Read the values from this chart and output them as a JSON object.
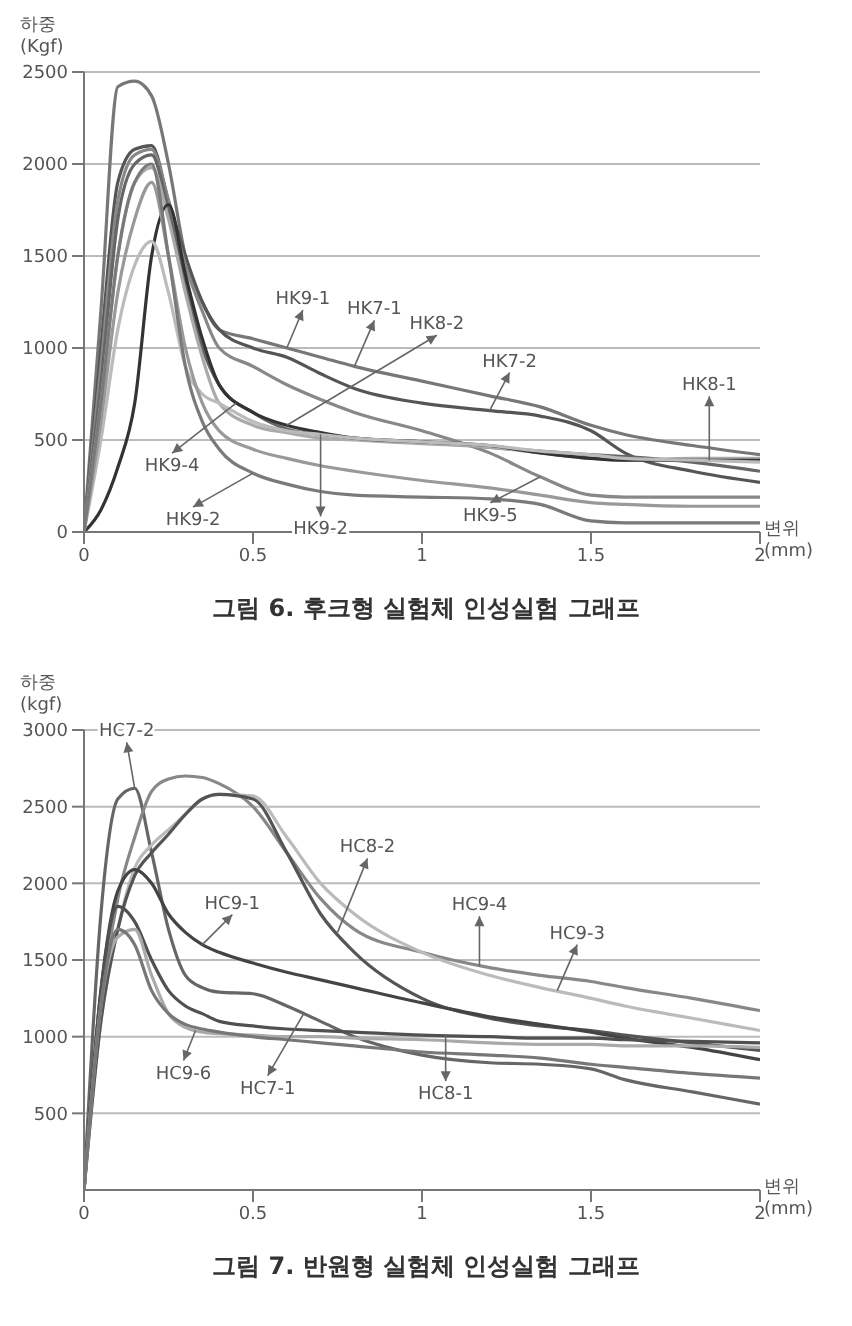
{
  "chart_data": [
    {
      "type": "line",
      "title": "그림 6. 후크형 실험체 인성실험 그래프",
      "ylabel": "하중 (Kgf)",
      "xlabel": "변위 (mm)",
      "x": [
        0,
        0.05,
        0.1,
        0.15,
        0.2,
        0.25,
        0.3,
        0.35,
        0.4,
        0.5,
        0.6,
        0.7,
        0.8,
        1.0,
        1.2,
        1.35,
        1.5,
        1.6,
        1.8,
        2.0
      ],
      "series": [
        {
          "color": "#777777",
          "values": [
            0,
            1200,
            2420,
            2450,
            2370,
            2000,
            1500,
            1250,
            1100,
            1050,
            1000,
            950,
            900,
            820,
            740,
            680,
            580,
            530,
            470,
            420
          ]
        },
        {
          "color": "#555555",
          "values": [
            0,
            1000,
            1900,
            2080,
            2100,
            1800,
            1500,
            1250,
            1100,
            1000,
            950,
            860,
            780,
            700,
            660,
            630,
            550,
            430,
            330,
            270
          ]
        },
        {
          "color": "#888888",
          "values": [
            0,
            900,
            1800,
            2050,
            2080,
            1800,
            1450,
            1200,
            1000,
            900,
            800,
            720,
            650,
            550,
            430,
            300,
            200,
            190,
            190,
            190
          ]
        },
        {
          "color": "#666666",
          "values": [
            0,
            800,
            1700,
            2000,
            2050,
            1750,
            1350,
            1000,
            800,
            650,
            560,
            530,
            510,
            490,
            460,
            440,
            420,
            410,
            380,
            330
          ]
        },
        {
          "color": "#aaaaaa",
          "values": [
            0,
            700,
            1500,
            1900,
            1980,
            1700,
            1300,
            950,
            700,
            580,
            540,
            510,
            500,
            480,
            460,
            430,
            400,
            390,
            400,
            400
          ]
        },
        {
          "color": "#333333",
          "values": [
            0,
            120,
            350,
            700,
            1500,
            1780,
            1400,
            1050,
            800,
            650,
            580,
            540,
            510,
            490,
            470,
            430,
            400,
            390,
            390,
            390
          ]
        },
        {
          "color": "#bbbbbb",
          "values": [
            0,
            500,
            1100,
            1450,
            1580,
            1300,
            900,
            750,
            700,
            600,
            550,
            530,
            510,
            490,
            470,
            440,
            420,
            400,
            390,
            380
          ]
        },
        {
          "color": "#999999",
          "values": [
            0,
            600,
            1300,
            1700,
            1900,
            1500,
            1000,
            700,
            550,
            450,
            400,
            360,
            330,
            280,
            240,
            200,
            160,
            150,
            140,
            140
          ]
        },
        {
          "color": "#7a7a7a",
          "values": [
            0,
            700,
            1500,
            1900,
            2000,
            1500,
            900,
            600,
            450,
            320,
            260,
            220,
            200,
            190,
            180,
            150,
            60,
            50,
            50,
            50
          ]
        }
      ],
      "xlim": [
        0,
        2
      ],
      "xticks": [
        0,
        0.5,
        1,
        1.5,
        2
      ],
      "ylim": [
        0,
        2500
      ],
      "yticks": [
        0,
        500,
        1000,
        1500,
        2000,
        2500
      ],
      "grid": "y",
      "annotations": [
        {
          "text": "HK9-1",
          "x": 0.6,
          "y": 1000
        },
        {
          "text": "HK7-1",
          "x": 0.8,
          "y": 900
        },
        {
          "text": "HK8-2",
          "x": 0.6,
          "y": 580
        },
        {
          "text": "HK7-2",
          "x": 1.2,
          "y": 660
        },
        {
          "text": "HK8-1",
          "x": 1.85,
          "y": 390
        },
        {
          "text": "HK9-4",
          "x": 0.45,
          "y": 700
        },
        {
          "text": "HK9-2",
          "x": 0.5,
          "y": 320
        },
        {
          "text": "HK9-2",
          "x": 0.7,
          "y": 530
        },
        {
          "text": "HK9-5",
          "x": 1.35,
          "y": 300
        }
      ]
    },
    {
      "type": "line",
      "title": "그림 7. 반원형 실험체 인성실험 그래프",
      "ylabel": "하중 (kgf)",
      "xlabel": "변위 (mm)",
      "x": [
        0,
        0.05,
        0.1,
        0.15,
        0.2,
        0.25,
        0.3,
        0.35,
        0.4,
        0.5,
        0.6,
        0.7,
        0.8,
        1.0,
        1.2,
        1.35,
        1.5,
        1.6,
        1.8,
        2.0
      ],
      "series": [
        {
          "color": "#666666",
          "values": [
            0,
            1800,
            2550,
            2620,
            2200,
            1700,
            1400,
            1320,
            1290,
            1280,
            1200,
            1100,
            1000,
            880,
            830,
            820,
            790,
            720,
            640,
            560
          ]
        },
        {
          "color": "#888888",
          "values": [
            0,
            1200,
            1900,
            2300,
            2600,
            2680,
            2700,
            2690,
            2650,
            2500,
            2200,
            1900,
            1700,
            1550,
            1450,
            1400,
            1360,
            1320,
            1250,
            1170
          ]
        },
        {
          "color": "#bbbbbb",
          "values": [
            0,
            1100,
            1700,
            2100,
            2250,
            2350,
            2450,
            2550,
            2580,
            2570,
            2300,
            2000,
            1800,
            1550,
            1400,
            1320,
            1250,
            1200,
            1120,
            1040
          ]
        },
        {
          "color": "#555555",
          "values": [
            0,
            1100,
            1700,
            2050,
            2200,
            2320,
            2450,
            2550,
            2580,
            2550,
            2200,
            1800,
            1550,
            1250,
            1120,
            1070,
            1040,
            1010,
            960,
            910
          ]
        },
        {
          "color": "#444444",
          "values": [
            0,
            1300,
            1950,
            2090,
            2000,
            1800,
            1680,
            1600,
            1550,
            1480,
            1420,
            1370,
            1320,
            1220,
            1130,
            1080,
            1030,
            990,
            930,
            850
          ]
        },
        {
          "color": "#505050",
          "values": [
            0,
            1300,
            1850,
            1750,
            1500,
            1300,
            1200,
            1150,
            1100,
            1070,
            1050,
            1040,
            1030,
            1010,
            1000,
            990,
            990,
            980,
            970,
            960
          ]
        },
        {
          "color": "#aaaaaa",
          "values": [
            0,
            1200,
            1650,
            1700,
            1400,
            1150,
            1060,
            1030,
            1020,
            1010,
            1000,
            1000,
            990,
            980,
            960,
            950,
            950,
            940,
            940,
            930
          ]
        },
        {
          "color": "#777777",
          "values": [
            0,
            1200,
            1700,
            1600,
            1300,
            1150,
            1080,
            1050,
            1030,
            1000,
            980,
            960,
            940,
            900,
            880,
            860,
            820,
            800,
            760,
            730
          ]
        }
      ],
      "xlim": [
        0,
        2
      ],
      "xticks": [
        0,
        0.5,
        1,
        1.5,
        2
      ],
      "ylim": [
        0,
        3000
      ],
      "yticks": [
        500,
        1000,
        1500,
        2000,
        2500,
        3000
      ],
      "grid": "y",
      "annotations": [
        {
          "text": "HC7-2",
          "x": 0.15,
          "y": 2620
        },
        {
          "text": "HC8-2",
          "x": 0.75,
          "y": 1680
        },
        {
          "text": "HC9-1",
          "x": 0.35,
          "y": 1600
        },
        {
          "text": "HC9-4",
          "x": 1.17,
          "y": 1460
        },
        {
          "text": "HC9-3",
          "x": 1.4,
          "y": 1300
        },
        {
          "text": "HC9-6",
          "x": 0.33,
          "y": 1040
        },
        {
          "text": "HC7-1",
          "x": 0.65,
          "y": 1150
        },
        {
          "text": "HC8-1",
          "x": 1.07,
          "y": 1010
        }
      ]
    }
  ]
}
